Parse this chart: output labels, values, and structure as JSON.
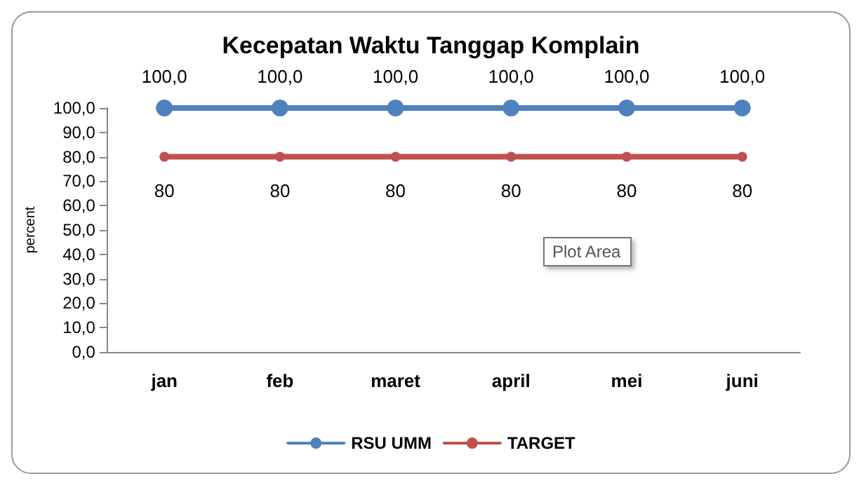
{
  "chart_data": {
    "type": "line",
    "title": "Kecepatan Waktu Tanggap Komplain",
    "ylabel": "percent",
    "categories": [
      "jan",
      "feb",
      "maret",
      "april",
      "mei",
      "juni"
    ],
    "series": [
      {
        "name": "RSU UMM",
        "color": "#4f81bd",
        "values": [
          100,
          100,
          100,
          100,
          100,
          100
        ],
        "value_labels": [
          "100,0",
          "100,0",
          "100,0",
          "100,0",
          "100,0",
          "100,0"
        ],
        "marker": "circle"
      },
      {
        "name": "TARGET",
        "color": "#c0504d",
        "values": [
          80,
          80,
          80,
          80,
          80,
          80
        ],
        "value_labels": [
          "80",
          "80",
          "80",
          "80",
          "80",
          "80"
        ],
        "marker": "circle"
      }
    ],
    "ylim": [
      0,
      100
    ],
    "yticks": [
      {
        "value": 0,
        "label": "0,0"
      },
      {
        "value": 10,
        "label": "10,0"
      },
      {
        "value": 20,
        "label": "20,0"
      },
      {
        "value": 30,
        "label": "30,0"
      },
      {
        "value": 40,
        "label": "40,0"
      },
      {
        "value": 50,
        "label": "50,0"
      },
      {
        "value": 60,
        "label": "60,0"
      },
      {
        "value": 70,
        "label": "70,0"
      },
      {
        "value": 80,
        "label": "80,0"
      },
      {
        "value": 90,
        "label": "90,0"
      },
      {
        "value": 100,
        "label": "100,0"
      }
    ],
    "grid": false,
    "legend": "bottom",
    "line_style": "solid",
    "annotations": [
      "Plot Area"
    ]
  }
}
